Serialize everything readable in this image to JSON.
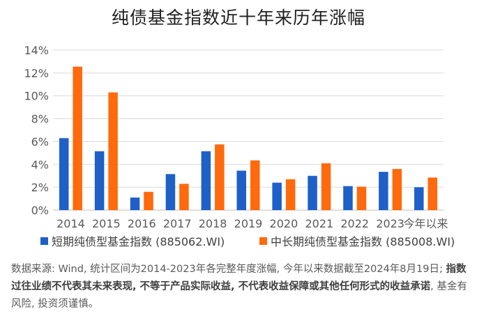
{
  "chart_data": {
    "type": "bar",
    "title": "纯债基金指数近十年来历年涨幅",
    "xlabel": "",
    "ylabel": "",
    "categories": [
      "2014",
      "2015",
      "2016",
      "2017",
      "2018",
      "2019",
      "2020",
      "2021",
      "2022",
      "2023",
      "今年以来"
    ],
    "series": [
      {
        "name": "短期纯债型基金指数 (885062.WI)",
        "color": "#1f5fc8",
        "values": [
          6.3,
          5.15,
          1.1,
          3.15,
          5.15,
          3.45,
          2.4,
          3.0,
          2.1,
          3.35,
          2.0
        ]
      },
      {
        "name": "中长期纯债型基金指数 (885008.WI)",
        "color": "#ff6a0d",
        "values": [
          12.55,
          10.3,
          1.6,
          2.3,
          5.75,
          4.35,
          2.7,
          4.1,
          2.05,
          3.6,
          2.85
        ]
      }
    ],
    "ylim": [
      0,
      14
    ],
    "yticks": [
      "0%",
      "2%",
      "4%",
      "6%",
      "8%",
      "10%",
      "12%",
      "14%"
    ],
    "grid": true,
    "legend_position": "bottom"
  },
  "footnote": {
    "part1": "数据来源: Wind, 统计区间为2014-2023年各完整年度涨幅, 今年以来数据截至2024年8月19日; ",
    "bold": "指数过往业绩不代表其未来表现, 不等于产品实际收益, 不代表收益保障或其他任何形式的收益承诺",
    "part2": ", 基金有风险, 投资须谨慎。"
  }
}
